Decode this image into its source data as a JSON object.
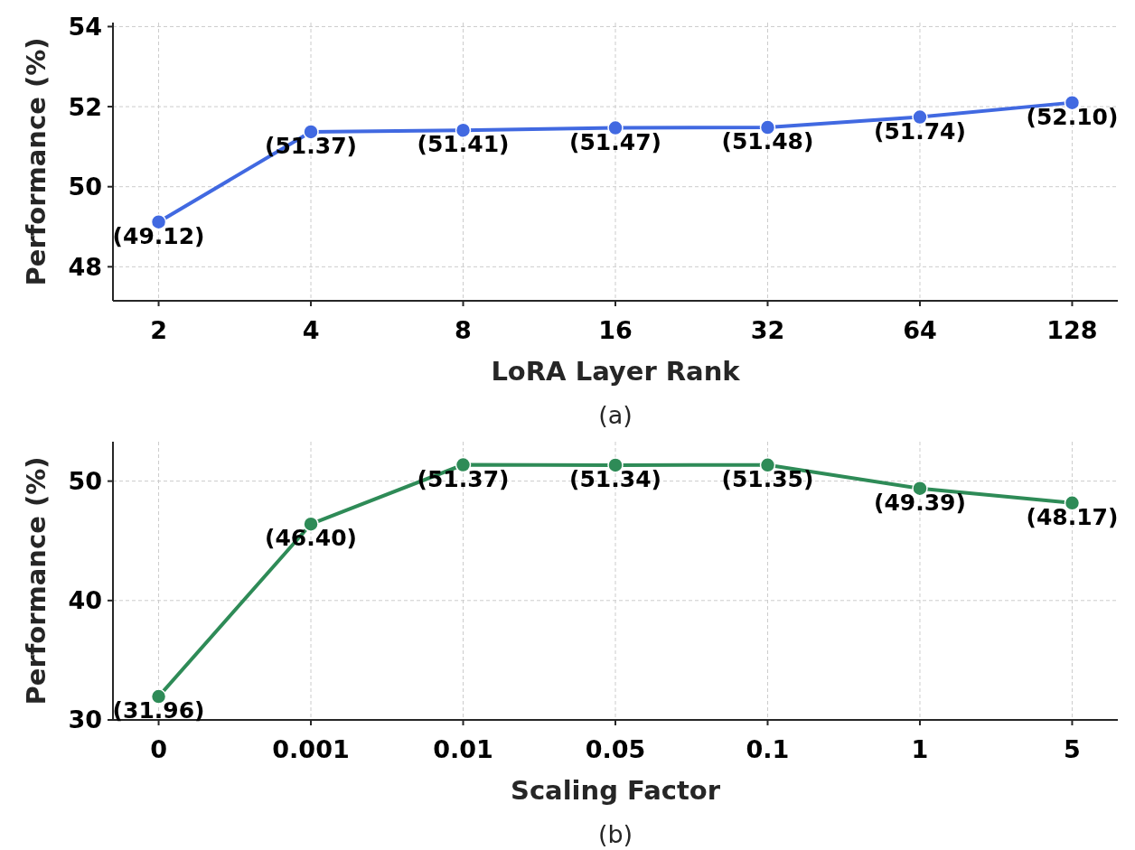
{
  "chart_data": [
    {
      "type": "line",
      "xlabel": "LoRA Layer Rank",
      "ylabel": "Performance (%)",
      "annotations": [
        "(a)"
      ],
      "categories": [
        "2",
        "4",
        "8",
        "16",
        "32",
        "64",
        "128"
      ],
      "series": [
        {
          "color": "#4169e1",
          "values": [
            49.12,
            51.37,
            51.41,
            51.47,
            51.48,
            51.74,
            52.1
          ],
          "value_labels": [
            "(49.12)",
            "(51.37)",
            "(51.41)",
            "(51.47)",
            "(51.48)",
            "(51.74)",
            "(52.10)"
          ]
        }
      ],
      "ylim": [
        47.15,
        54.1
      ],
      "yticks": [
        48,
        50,
        52,
        54
      ],
      "grid": true,
      "marker": "circle",
      "line_style": "solid"
    },
    {
      "type": "line",
      "xlabel": "Scaling Factor",
      "ylabel": "Performance (%)",
      "annotations": [
        "(b)"
      ],
      "categories": [
        "0",
        "0.001",
        "0.01",
        "0.05",
        "0.1",
        "1",
        "5"
      ],
      "series": [
        {
          "color": "#2e8b57",
          "values": [
            31.96,
            46.4,
            51.37,
            51.34,
            51.35,
            49.39,
            48.17
          ],
          "value_labels": [
            "(31.96)",
            "(46.40)",
            "(51.37)",
            "(51.34)",
            "(51.35)",
            "(49.39)",
            "(48.17)"
          ]
        }
      ],
      "ylim": [
        30,
        53.3
      ],
      "yticks": [
        30,
        40,
        50
      ],
      "grid": true,
      "marker": "circle",
      "line_style": "solid"
    }
  ]
}
